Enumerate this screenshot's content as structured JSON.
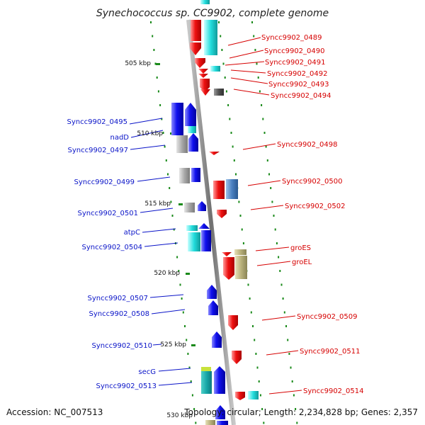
{
  "title": "Synechococcus sp. CC9902, complete genome",
  "footer": {
    "accession": "Accession: NC_007513",
    "stats": "Topology: circular; Length: 2,234,828 bp; Genes: 2,357"
  },
  "ticks": [
    "505 kbp",
    "510 kbp",
    "515 kbp",
    "520 kbp",
    "525 kbp",
    "530 kbp"
  ],
  "genes_minus": [
    "Syncc9902_0495",
    "nadD",
    "Syncc9902_0497",
    "Syncc9902_0499",
    "Syncc9902_0501",
    "atpC",
    "Syncc9902_0504",
    "Syncc9902_0507",
    "Syncc9902_0508",
    "Syncc9902_0510",
    "secG",
    "Syncc9902_0513"
  ],
  "genes_plus": [
    "Syncc9902_0489",
    "Syncc9902_0490",
    "Syncc9902_0491",
    "Syncc9902_0492",
    "Syncc9902_0493",
    "Syncc9902_0494",
    "Syncc9902_0498",
    "Syncc9902_0500",
    "Syncc9902_0502",
    "groES",
    "groEL",
    "Syncc9902_0509",
    "Syncc9902_0511",
    "Syncc9902_0514"
  ],
  "colors": {
    "plus_strand": "#ee1111",
    "minus_strand": "#1111ee",
    "cyan_track": "#22dddd",
    "grey_feature": "#a8a8a8",
    "olive_feature": "#b8b07a",
    "steelblue_feature": "#4a80c0",
    "backbone": "#909090",
    "dots": "#1a8a1a",
    "label_plus": "#d60000",
    "label_minus": "#0a14c8"
  }
}
